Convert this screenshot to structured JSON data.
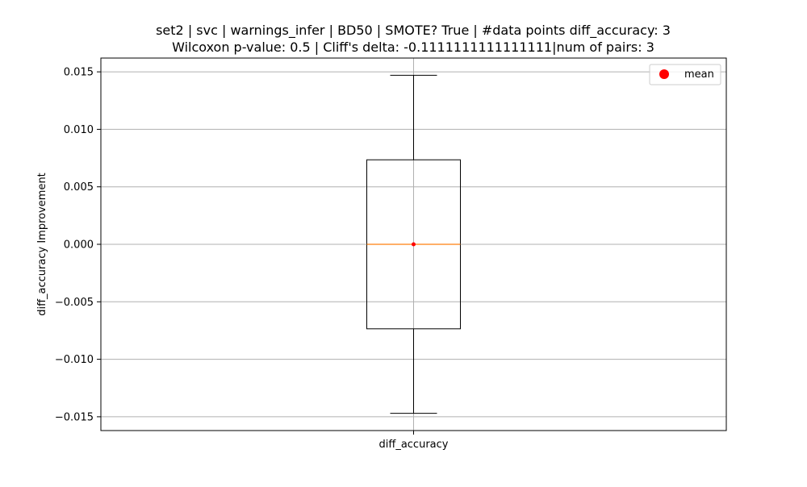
{
  "chart_data": {
    "type": "box",
    "title": "set2 | svc | warnings_infer | BD50 | SMOTE? True | #data points diff_accuracy: 3",
    "subtitle": "Wilcoxon p-value: 0.5 | Cliff's delta: -0.1111111111111111|num of pairs: 3",
    "xlabel": "",
    "ylabel": "diff_accuracy Improvement",
    "categories": [
      "diff_accuracy"
    ],
    "ylim": [
      -0.0162,
      0.0162
    ],
    "y_ticks": [
      -0.015,
      -0.01,
      -0.005,
      0.0,
      0.005,
      0.01,
      0.015
    ],
    "y_tick_labels": [
      "−0.015",
      "−0.010",
      "−0.005",
      "0.000",
      "0.005",
      "0.010",
      "0.015"
    ],
    "grid": true,
    "legend": {
      "placement": "top-right",
      "entries": [
        {
          "label": "mean",
          "color": "#ff0000",
          "marker": "circle"
        }
      ]
    },
    "box": {
      "whisker_low": -0.0147,
      "q1": -0.00735,
      "median": 0.0,
      "q3": 0.00735,
      "whisker_high": 0.0147,
      "mean": 0.0
    },
    "colors": {
      "box": "#000000",
      "median": "#ff7f0e",
      "mean": "#ff0000",
      "grid": "#b0b0b0"
    }
  }
}
